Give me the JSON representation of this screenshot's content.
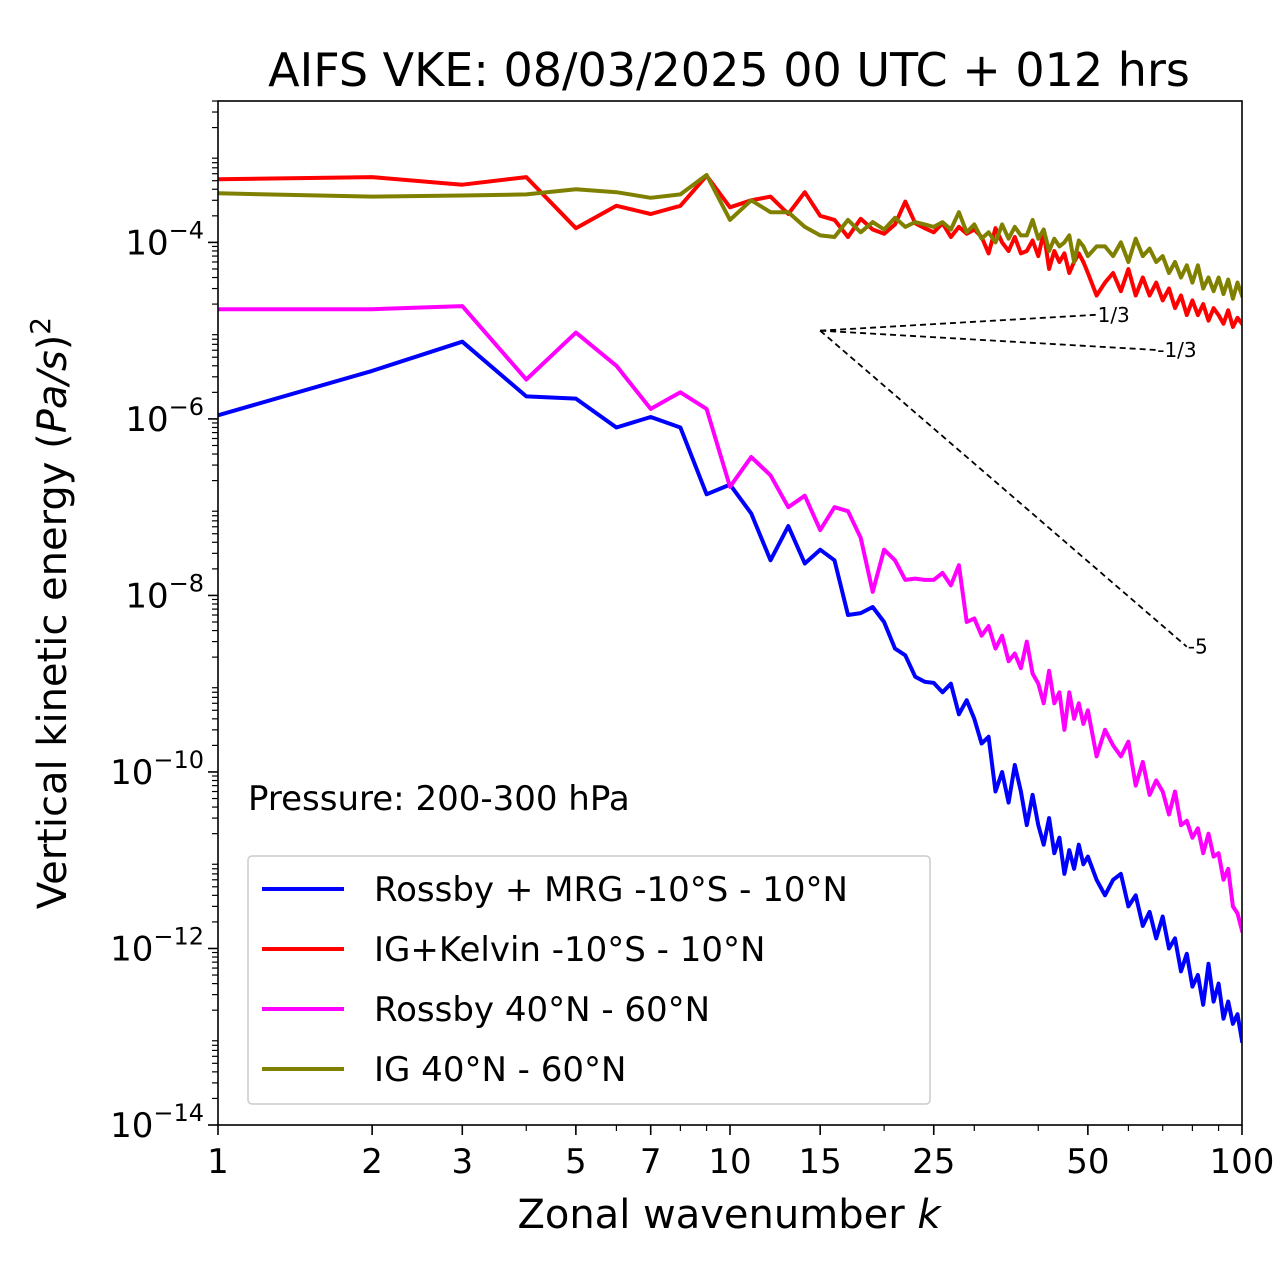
{
  "chart_data": {
    "type": "line",
    "title": "AIFS VKE: 08/03/2025 00 UTC + 012 hrs",
    "xlabel": "Zonal wavenumber k",
    "ylabel": "Vertical kinetic energy (Pa/s)²",
    "x_scale": "log",
    "y_scale": "log",
    "xlim": [
      1,
      100
    ],
    "ylim": [
      1e-14,
      0.004
    ],
    "x_ticks": [
      {
        "value": 1,
        "label": "1"
      },
      {
        "value": 2,
        "label": "2"
      },
      {
        "value": 3,
        "label": "3"
      },
      {
        "value": 5,
        "label": "5"
      },
      {
        "value": 7,
        "label": "7"
      },
      {
        "value": 10,
        "label": "10"
      },
      {
        "value": 15,
        "label": "15"
      },
      {
        "value": 25,
        "label": "25"
      },
      {
        "value": 50,
        "label": "50"
      },
      {
        "value": 100,
        "label": "100"
      }
    ],
    "y_ticks": [
      {
        "value": 0.0001,
        "base": "10",
        "exp": "−4"
      },
      {
        "value": 1e-06,
        "base": "10",
        "exp": "−6"
      },
      {
        "value": 1e-08,
        "base": "10",
        "exp": "−8"
      },
      {
        "value": 1e-10,
        "base": "10",
        "exp": "−10"
      },
      {
        "value": 1e-12,
        "base": "10",
        "exp": "−12"
      },
      {
        "value": 1e-14,
        "base": "10",
        "exp": "−14"
      }
    ],
    "annotation": "Pressure: 200-300 hPa",
    "legend_position": "lower-left",
    "reference_lines": [
      {
        "label": "1/3",
        "slope": 0.3333,
        "x": [
          15,
          52
        ],
        "y_start": 1e-05
      },
      {
        "label": "-1/3",
        "slope": -0.3333,
        "x": [
          15,
          68
        ],
        "y_start": 1e-05
      },
      {
        "label": "-5",
        "slope": -5,
        "x": [
          15,
          78
        ],
        "y_start": 1e-05
      }
    ],
    "series": [
      {
        "name": "Rossby + MRG -10°S - 10°N",
        "color": "#0000ff",
        "x": [
          1,
          2,
          3,
          4,
          5,
          6,
          7,
          8,
          9,
          10,
          11,
          12,
          13,
          14,
          15,
          16,
          17,
          18,
          19,
          20,
          21,
          22,
          23,
          24,
          25,
          26,
          27,
          28,
          29,
          30,
          31,
          32,
          33,
          34,
          35,
          36,
          37,
          38,
          39,
          40,
          41,
          42,
          43,
          44,
          45,
          46,
          47,
          48,
          49,
          50,
          52,
          54,
          56,
          58,
          60,
          62,
          64,
          66,
          68,
          70,
          72,
          74,
          76,
          78,
          80,
          82,
          84,
          86,
          88,
          90,
          92,
          94,
          96,
          98,
          100
        ],
        "y": [
          1.1e-06,
          3.5e-06,
          7.5e-06,
          1.8e-06,
          1.7e-06,
          8e-07,
          1.05e-06,
          8e-07,
          1.4e-07,
          1.8e-07,
          8.5e-08,
          2.5e-08,
          6.1e-08,
          2.3e-08,
          3.3e-08,
          2.5e-08,
          6e-09,
          6.3e-09,
          7.4e-09,
          5e-09,
          2.5e-09,
          2.1e-09,
          1.2e-09,
          1.05e-09,
          1.02e-09,
          8e-10,
          1e-09,
          4.5e-10,
          6.5e-10,
          4e-10,
          2.1e-10,
          2.5e-10,
          6e-11,
          1e-10,
          4.5e-11,
          1.2e-10,
          6e-11,
          2.5e-11,
          5.5e-11,
          2.5e-11,
          1.5e-11,
          3e-11,
          1.2e-11,
          1.8e-11,
          7e-12,
          1.3e-11,
          8e-12,
          1.5e-11,
          9e-12,
          1.1e-11,
          6e-12,
          4e-12,
          6e-12,
          7e-12,
          3e-12,
          4e-12,
          1.8e-12,
          2.6e-12,
          1.3e-12,
          2.3e-12,
          1e-12,
          1.3e-12,
          5.5e-13,
          8.7e-13,
          3.7e-13,
          5e-13,
          2.3e-13,
          6.7e-13,
          2.5e-13,
          4e-13,
          1.6e-13,
          2.5e-13,
          1.4e-13,
          1.8e-13,
          9e-14
        ]
      },
      {
        "name": "IG+Kelvin -10°S - 10°N",
        "color": "#ff0000",
        "x": [
          1,
          2,
          3,
          4,
          5,
          6,
          7,
          8,
          9,
          10,
          11,
          12,
          13,
          14,
          15,
          16,
          17,
          18,
          19,
          20,
          21,
          22,
          23,
          24,
          25,
          26,
          27,
          28,
          29,
          30,
          31,
          32,
          33,
          34,
          35,
          36,
          37,
          38,
          39,
          40,
          41,
          42,
          43,
          44,
          45,
          46,
          47,
          48,
          49,
          50,
          52,
          54,
          56,
          58,
          60,
          62,
          64,
          66,
          68,
          70,
          72,
          74,
          76,
          78,
          80,
          82,
          84,
          86,
          88,
          90,
          92,
          94,
          96,
          98,
          100
        ],
        "y": [
          0.00052,
          0.00055,
          0.00045,
          0.00055,
          0.000145,
          0.00026,
          0.00021,
          0.00026,
          0.00057,
          0.00025,
          0.0003,
          0.00033,
          0.00021,
          0.00037,
          0.0002,
          0.00018,
          0.000115,
          0.000185,
          0.00014,
          0.000125,
          0.00016,
          0.00029,
          0.000165,
          0.000145,
          0.00013,
          0.000165,
          0.000115,
          0.00015,
          0.000125,
          0.00014,
          0.000115,
          7.5e-05,
          0.000145,
          0.0001,
          8e-05,
          0.000115,
          7.5e-05,
          8e-05,
          0.000105,
          7e-05,
          0.00013,
          5e-05,
          8e-05,
          6e-05,
          7.5e-05,
          4.5e-05,
          6e-05,
          7.5e-05,
          6e-05,
          4.5e-05,
          2.5e-05,
          3.5e-05,
          4.5e-05,
          2.8e-05,
          5e-05,
          2.5e-05,
          4e-05,
          2.5e-05,
          3.5e-05,
          2.2e-05,
          3e-05,
          1.8e-05,
          2.5e-05,
          1.5e-05,
          2.2e-05,
          1.5e-05,
          2e-05,
          1.3e-05,
          1.8e-05,
          1.5e-05,
          1.2e-05,
          1.7e-05,
          1.1e-05,
          1.4e-05,
          1.2e-05
        ]
      },
      {
        "name": "Rossby 40°N - 60°N",
        "color": "#ff00ff",
        "x": [
          1,
          2,
          3,
          4,
          5,
          6,
          7,
          8,
          9,
          10,
          11,
          12,
          13,
          14,
          15,
          16,
          17,
          18,
          19,
          20,
          21,
          22,
          23,
          24,
          25,
          26,
          27,
          28,
          29,
          30,
          31,
          32,
          33,
          34,
          35,
          36,
          37,
          38,
          39,
          40,
          41,
          42,
          43,
          44,
          45,
          46,
          47,
          48,
          49,
          50,
          52,
          54,
          56,
          58,
          60,
          62,
          64,
          66,
          68,
          70,
          72,
          74,
          76,
          78,
          80,
          82,
          84,
          86,
          88,
          90,
          92,
          94,
          96,
          98,
          100
        ],
        "y": [
          1.75e-05,
          1.75e-05,
          1.9e-05,
          2.8e-06,
          9.5e-06,
          4e-06,
          1.3e-06,
          2e-06,
          1.3e-06,
          1.7e-07,
          3.7e-07,
          2.3e-07,
          1e-07,
          1.35e-07,
          5.5e-08,
          1e-07,
          9e-08,
          4.5e-08,
          1.1e-08,
          3.3e-08,
          2.5e-08,
          1.5e-08,
          1.55e-08,
          1.5e-08,
          1.5e-08,
          1.8e-08,
          1.3e-08,
          2.2e-08,
          5e-09,
          5.5e-09,
          3.5e-09,
          4.5e-09,
          2.5e-09,
          3.5e-09,
          1.8e-09,
          2.2e-09,
          1.5e-09,
          3e-09,
          1.3e-09,
          1e-09,
          6e-10,
          1.4e-09,
          6e-10,
          8e-10,
          3e-10,
          8e-10,
          4e-10,
          6e-10,
          3.5e-10,
          5e-10,
          1.5e-10,
          3e-10,
          2e-10,
          1.5e-10,
          2.2e-10,
          7e-11,
          1.3e-10,
          5.5e-11,
          8e-11,
          6e-11,
          3.3e-11,
          6e-11,
          2.5e-11,
          2.8e-11,
          1.8e-11,
          2.3e-11,
          1.2e-11,
          2e-11,
          1.1e-11,
          1.2e-11,
          6e-12,
          8e-12,
          3e-12,
          2.5e-12,
          1.6e-12
        ]
      },
      {
        "name": "IG 40°N - 60°N",
        "color": "#808000",
        "x": [
          1,
          2,
          3,
          4,
          5,
          6,
          7,
          8,
          9,
          10,
          11,
          12,
          13,
          14,
          15,
          16,
          17,
          18,
          19,
          20,
          21,
          22,
          23,
          24,
          25,
          26,
          27,
          28,
          29,
          30,
          31,
          32,
          33,
          34,
          35,
          36,
          37,
          38,
          39,
          40,
          41,
          42,
          43,
          44,
          45,
          46,
          47,
          48,
          49,
          50,
          52,
          54,
          56,
          58,
          60,
          62,
          64,
          66,
          68,
          70,
          72,
          74,
          76,
          78,
          80,
          82,
          84,
          86,
          88,
          90,
          92,
          94,
          96,
          98,
          100
        ],
        "y": [
          0.00036,
          0.00033,
          0.00034,
          0.00035,
          0.0004,
          0.00037,
          0.00032,
          0.00035,
          0.00058,
          0.00018,
          0.0003,
          0.00022,
          0.00022,
          0.00015,
          0.00012,
          0.000115,
          0.00018,
          0.00013,
          0.00017,
          0.00014,
          0.00019,
          0.00015,
          0.00017,
          0.00016,
          0.00015,
          0.00017,
          0.00014,
          0.00022,
          0.00013,
          0.00016,
          0.00011,
          0.00013,
          0.0001,
          0.00016,
          0.00011,
          0.00015,
          0.00012,
          0.00012,
          0.00018,
          0.00011,
          0.00014,
          8e-05,
          0.00011,
          9e-05,
          0.0001,
          0.00012,
          6e-05,
          0.000105,
          9e-05,
          7e-05,
          9e-05,
          9e-05,
          7e-05,
          0.0001,
          6e-05,
          0.00011,
          7e-05,
          8.5e-05,
          6e-05,
          7e-05,
          4.5e-05,
          6e-05,
          4e-05,
          5.5e-05,
          3.5e-05,
          5.5e-05,
          3e-05,
          4e-05,
          2.8e-05,
          4e-05,
          2.6e-05,
          3.8e-05,
          2.3e-05,
          3.5e-05,
          2.5e-05
        ]
      }
    ]
  }
}
